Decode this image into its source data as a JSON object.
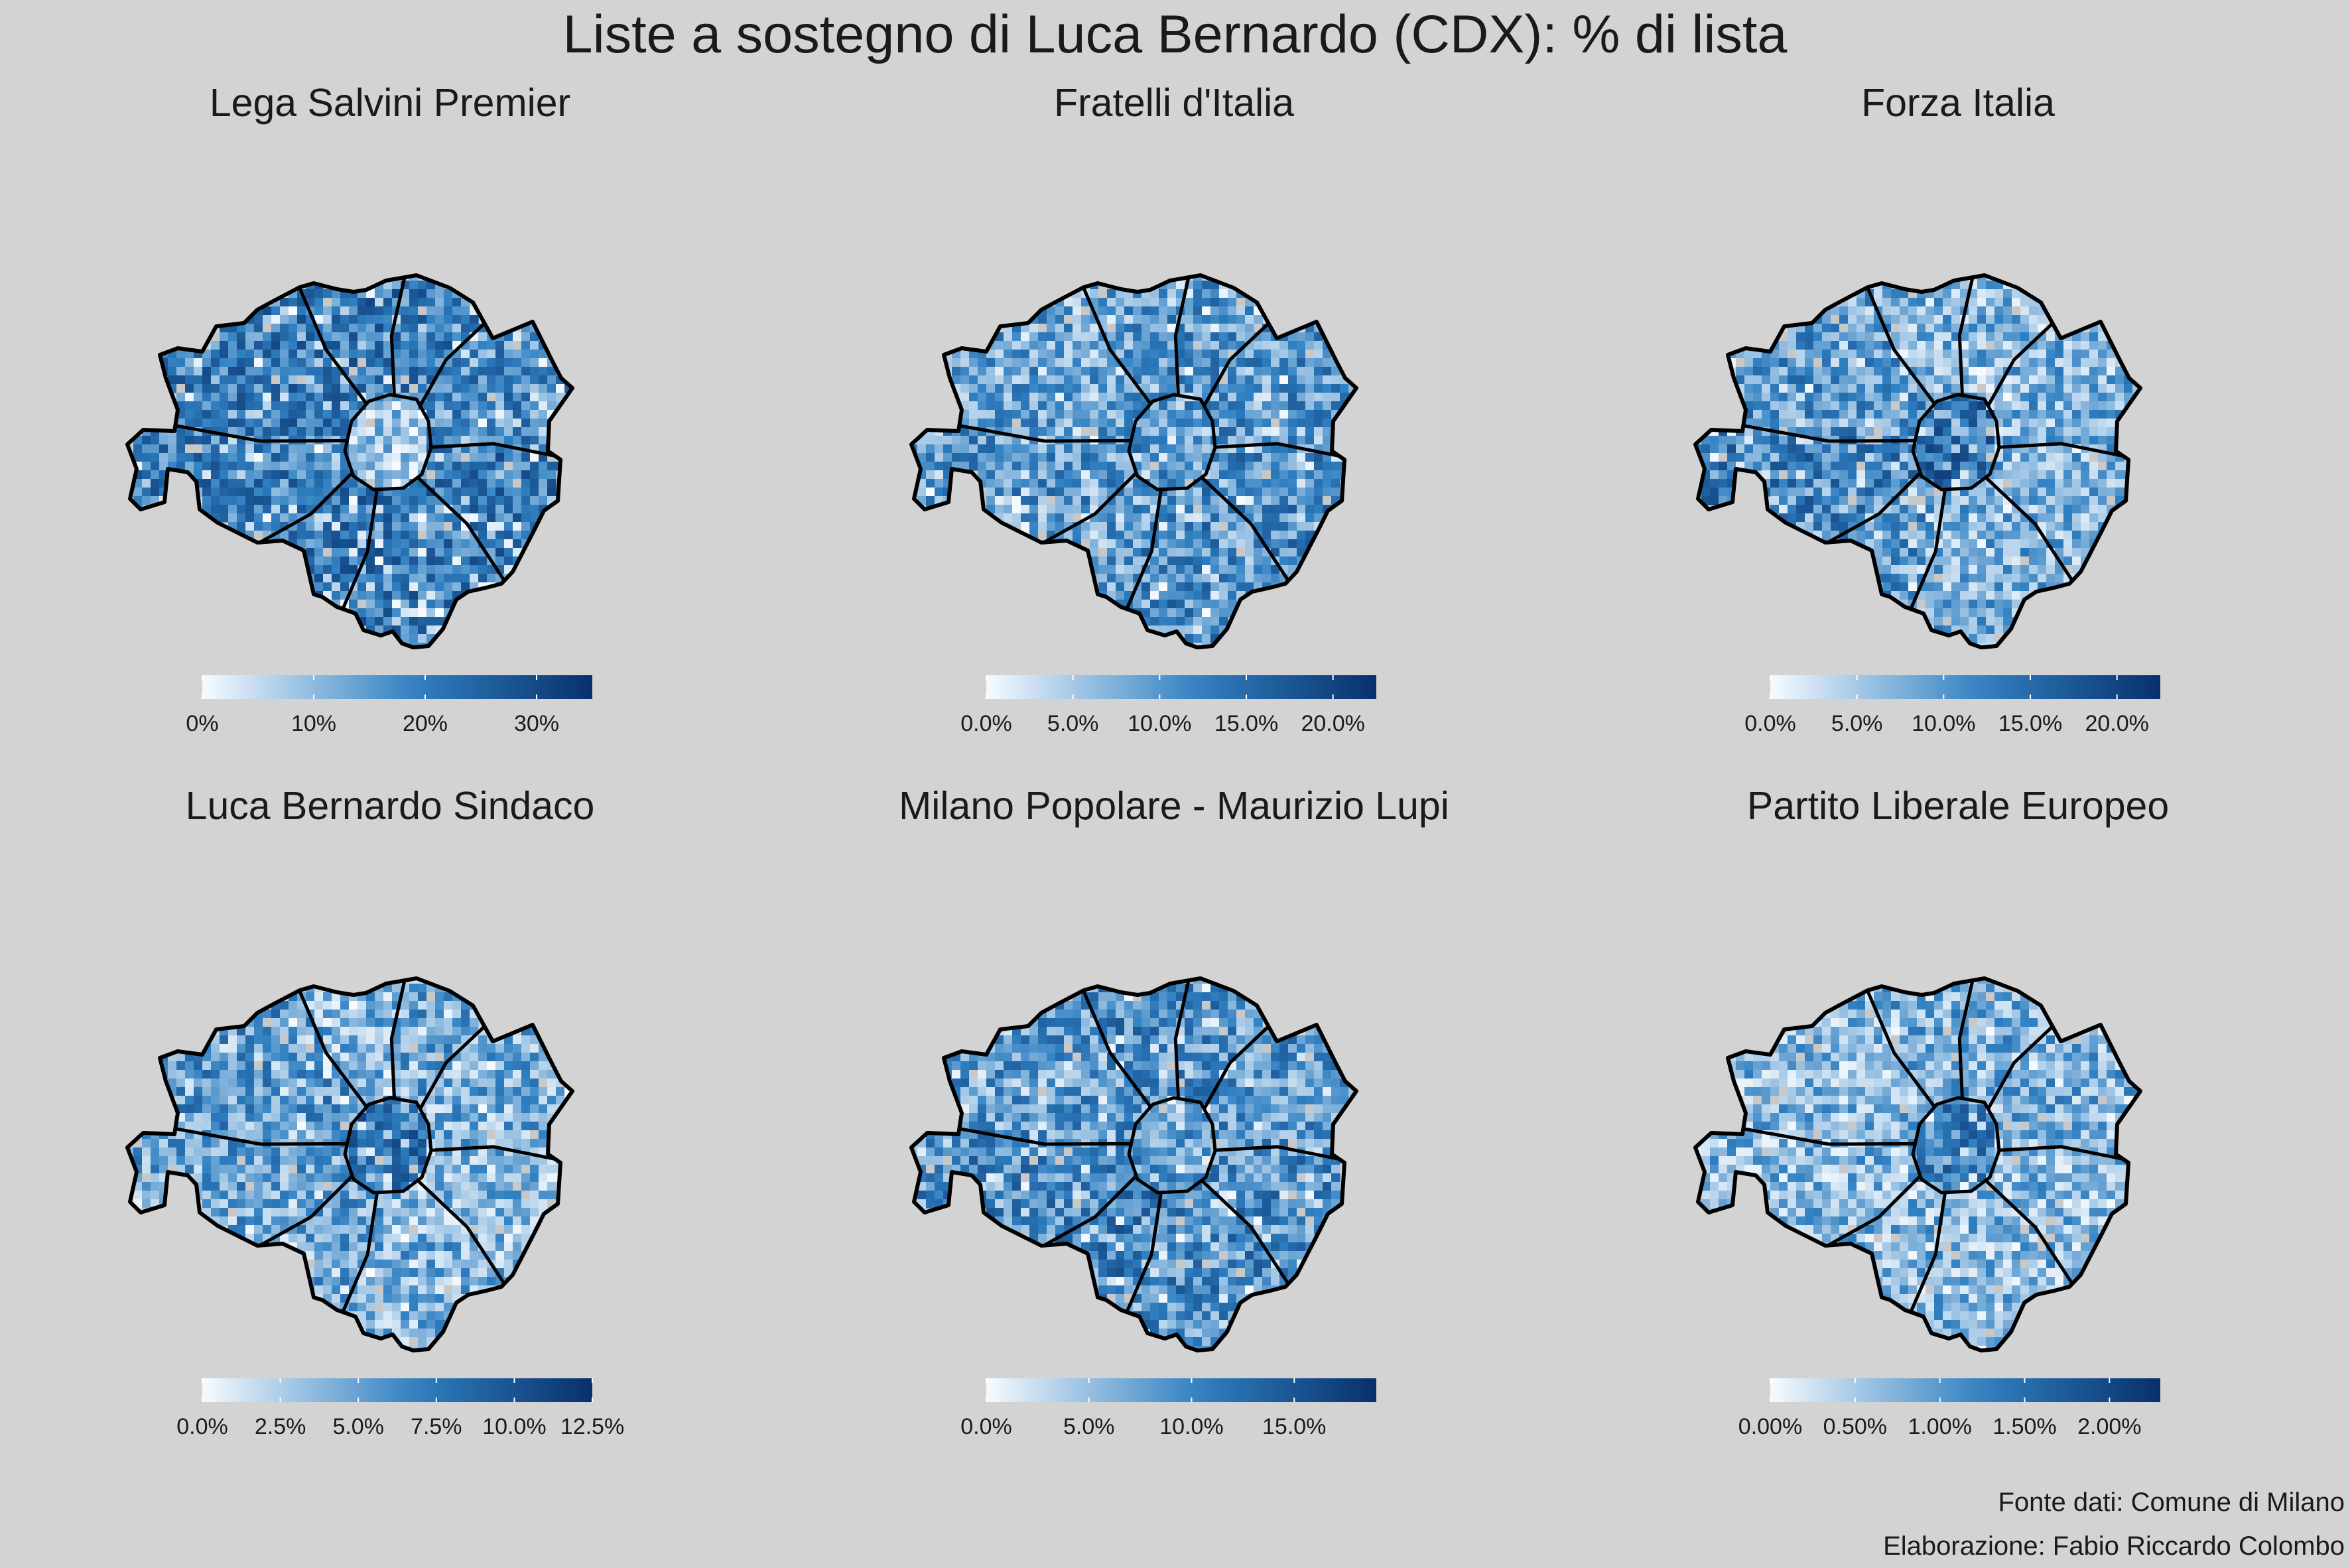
{
  "title": "Liste a sostegno di Luca Bernardo (CDX): % di lista",
  "palette": {
    "low": "#f7fbff",
    "mid": "#2f7fc1",
    "high": "#08306b",
    "missing": "#c8c8c8",
    "border": "#000000"
  },
  "panels": [
    {
      "title": "Lega Salvini Premier",
      "legend": {
        "min": 0,
        "max": 35,
        "ticks": [
          0,
          10,
          20,
          30
        ],
        "tick_labels": [
          "0%",
          "10%",
          "20%",
          "30%"
        ]
      },
      "zone_intensity": [
        0.25,
        0.55,
        0.5,
        0.6,
        0.58,
        0.6,
        0.55,
        0.58,
        0.6
      ]
    },
    {
      "title": "Fratelli d'Italia",
      "legend": {
        "min": 0,
        "max": 22.5,
        "ticks": [
          0,
          5,
          10,
          15,
          20
        ],
        "tick_labels": [
          "0.0%",
          "5.0%",
          "10.0%",
          "15.0%",
          "20.0%"
        ]
      },
      "zone_intensity": [
        0.45,
        0.45,
        0.45,
        0.5,
        0.5,
        0.4,
        0.45,
        0.4,
        0.45
      ]
    },
    {
      "title": "Forza Italia",
      "legend": {
        "min": 0,
        "max": 22.5,
        "ticks": [
          0,
          5,
          10,
          15,
          20
        ],
        "tick_labels": [
          "0.0%",
          "5.0%",
          "10.0%",
          "15.0%",
          "20.0%"
        ]
      },
      "zone_intensity": [
        0.62,
        0.3,
        0.35,
        0.32,
        0.35,
        0.45,
        0.55,
        0.45,
        0.3
      ]
    },
    {
      "title": "Luca Bernardo Sindaco",
      "legend": {
        "min": 0,
        "max": 12.5,
        "ticks": [
          0,
          2.5,
          5,
          7.5,
          10,
          12.5
        ],
        "tick_labels": [
          "0.0%",
          "2.5%",
          "5.0%",
          "7.5%",
          "10.0%",
          "12.5%"
        ]
      },
      "zone_intensity": [
        0.6,
        0.4,
        0.35,
        0.3,
        0.35,
        0.4,
        0.4,
        0.45,
        0.3
      ]
    },
    {
      "title": "Milano Popolare - Maurizio Lupi",
      "legend": {
        "min": 0,
        "max": 19,
        "ticks": [
          0,
          5,
          10,
          15
        ],
        "tick_labels": [
          "0.0%",
          "5.0%",
          "10.0%",
          "15.0%"
        ]
      },
      "zone_intensity": [
        0.45,
        0.5,
        0.45,
        0.5,
        0.5,
        0.55,
        0.5,
        0.45,
        0.5
      ]
    },
    {
      "title": "Partito Liberale Europeo",
      "legend": {
        "min": 0,
        "max": 2.3,
        "ticks": [
          0,
          0.5,
          1,
          1.5,
          2
        ],
        "tick_labels": [
          "0.00%",
          "0.50%",
          "1.00%",
          "1.50%",
          "2.00%"
        ]
      },
      "zone_intensity": [
        0.55,
        0.35,
        0.35,
        0.3,
        0.3,
        0.3,
        0.3,
        0.3,
        0.35
      ]
    }
  ],
  "credits": {
    "source": "Fonte dati: Comune di Milano",
    "author": "Elaborazione: Fabio Riccardo Colombo"
  }
}
